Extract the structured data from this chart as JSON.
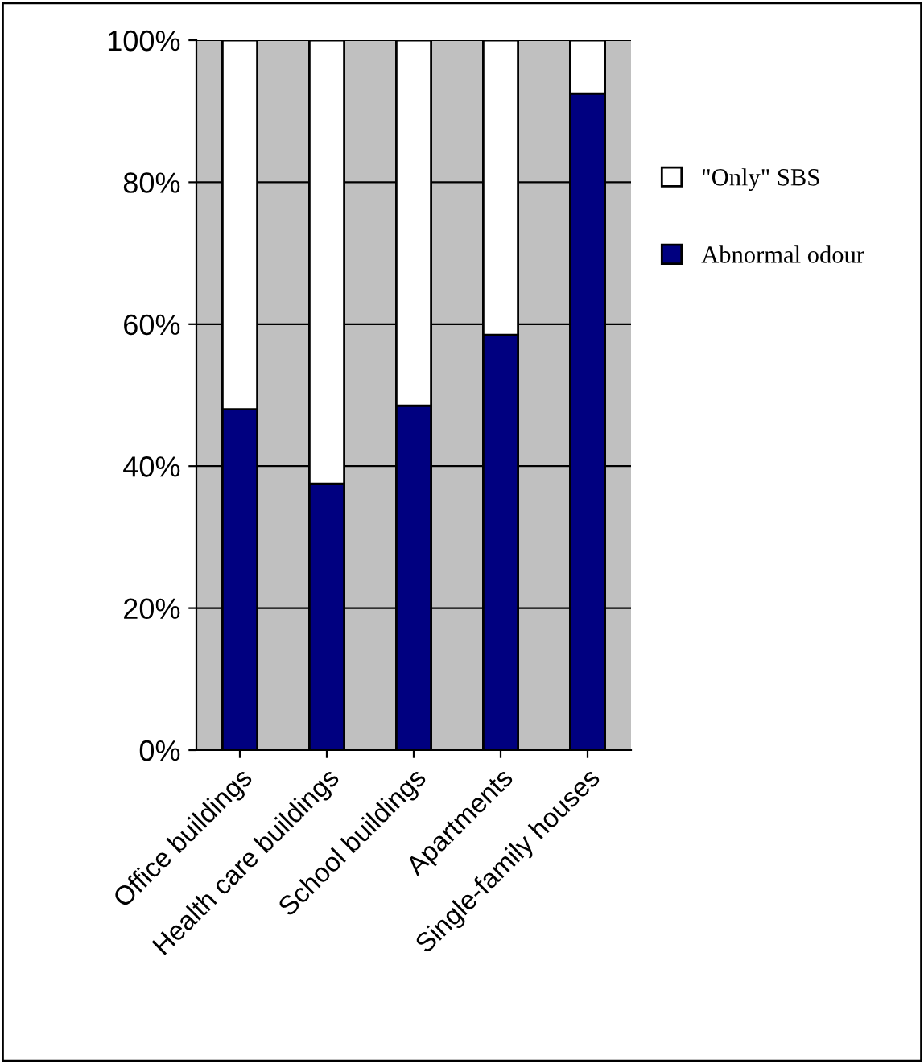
{
  "chart_data": {
    "type": "bar",
    "stacked": true,
    "categories": [
      "Office buildings",
      "Health care buildings",
      "School buildings",
      "Apartments",
      "Single-family houses"
    ],
    "series": [
      {
        "name": "Abnormal odour",
        "color": "#000080",
        "values": [
          48,
          37.5,
          48.5,
          58.5,
          92.5
        ]
      },
      {
        "name": "\"Only\" SBS",
        "color": "#ffffff",
        "values": [
          52,
          62.5,
          51.5,
          41.5,
          7.5
        ]
      }
    ],
    "ylim": [
      0,
      100
    ],
    "yticks": [
      {
        "value": 0,
        "label": "0%"
      },
      {
        "value": 20,
        "label": "20%"
      },
      {
        "value": 40,
        "label": "40%"
      },
      {
        "value": 60,
        "label": "60%"
      },
      {
        "value": 80,
        "label": "80%"
      },
      {
        "value": 100,
        "label": "100%"
      }
    ],
    "grid": "y",
    "legend": "right"
  }
}
